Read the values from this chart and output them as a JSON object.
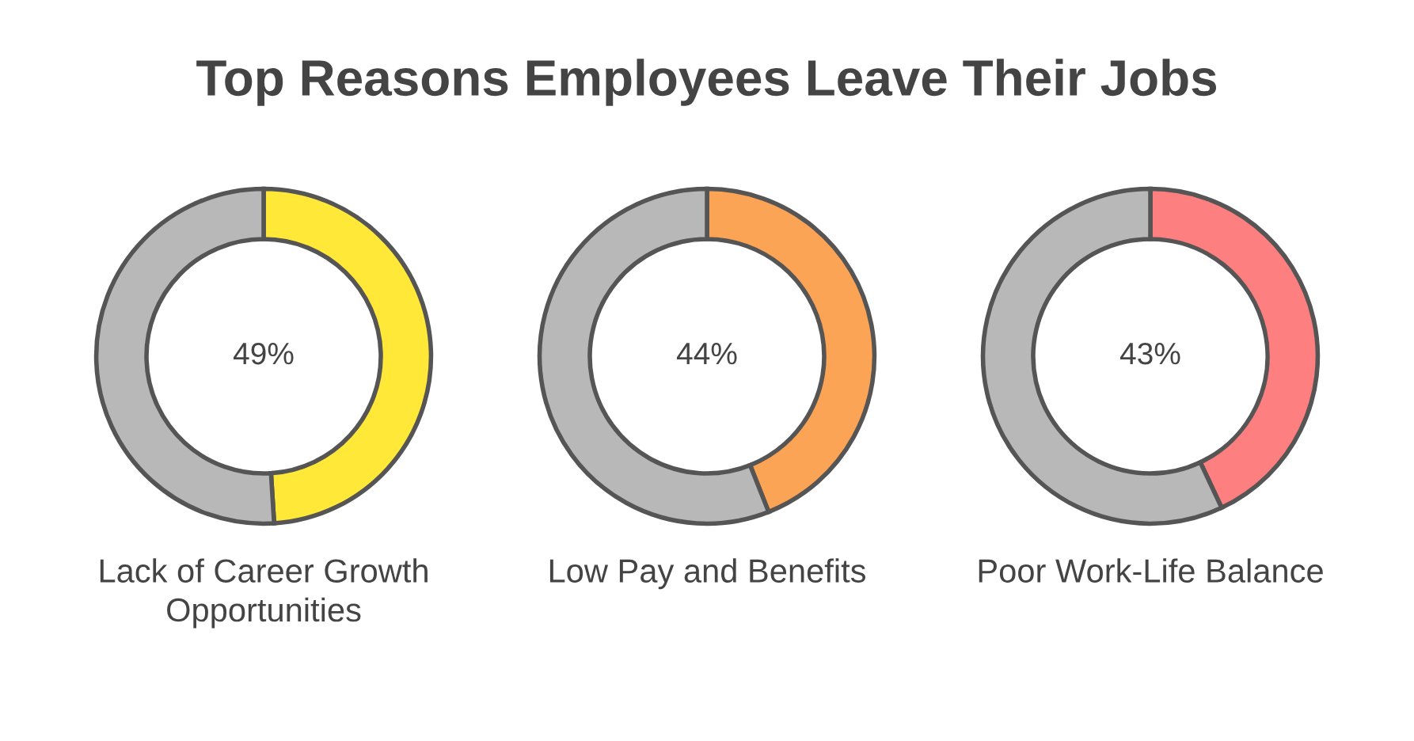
{
  "chart_data": [
    {
      "type": "donut",
      "title": "Top Reasons Employees Leave Their Jobs",
      "xlabel": "Lack of Career Growth\nOpportunities",
      "categories": [
        null,
        null
      ],
      "values": [
        49,
        51
      ],
      "colors": [
        "#ffe838",
        "#b8b8b8"
      ],
      "value_labels": [
        "49%",
        null
      ]
    },
    {
      "type": "donut",
      "xlabel": "Low Pay and Benefits",
      "categories": [
        null,
        null
      ],
      "values": [
        44,
        56
      ],
      "colors": [
        "#fca456",
        "#b8b8b8"
      ],
      "value_labels": [
        "44%",
        null
      ]
    },
    {
      "type": "donut",
      "xlabel": "Poor Work-Life Balance",
      "categories": [
        null,
        null
      ],
      "values": [
        43,
        57
      ],
      "colors": [
        "#fd7f7f",
        "#b8b8b8"
      ],
      "value_labels": [
        "43%",
        null
      ]
    }
  ]
}
